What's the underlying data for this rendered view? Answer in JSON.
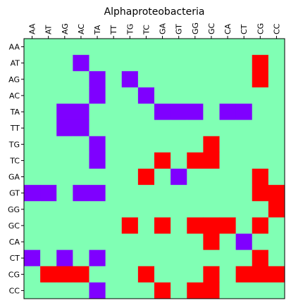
{
  "chart_data": {
    "type": "heatmap",
    "title": "Alphaproteobacteria",
    "x_categories": [
      "AA",
      "AT",
      "AG",
      "AC",
      "TA",
      "TT",
      "TG",
      "TC",
      "GA",
      "GT",
      "GG",
      "GC",
      "CA",
      "CT",
      "CG",
      "CC"
    ],
    "y_categories": [
      "AA",
      "AT",
      "AG",
      "AC",
      "TA",
      "TT",
      "TG",
      "TC",
      "GA",
      "GT",
      "GG",
      "GC",
      "CA",
      "CT",
      "CG",
      "CC"
    ],
    "x_tick_position": "top",
    "grid": false,
    "color_scale": {
      "-1": "#7f00ff",
      "0": "#80ffb4",
      "1": "#ff0000"
    },
    "values": [
      [
        0,
        0,
        0,
        0,
        0,
        0,
        0,
        0,
        0,
        0,
        0,
        0,
        0,
        0,
        0,
        0
      ],
      [
        0,
        0,
        0,
        -1,
        0,
        0,
        0,
        0,
        0,
        0,
        0,
        0,
        0,
        0,
        1,
        0
      ],
      [
        0,
        0,
        0,
        0,
        -1,
        0,
        -1,
        0,
        0,
        0,
        0,
        0,
        0,
        0,
        1,
        0
      ],
      [
        0,
        0,
        0,
        0,
        -1,
        0,
        0,
        -1,
        0,
        0,
        0,
        0,
        0,
        0,
        0,
        0
      ],
      [
        0,
        0,
        -1,
        -1,
        0,
        0,
        0,
        0,
        -1,
        -1,
        -1,
        0,
        -1,
        -1,
        0,
        0
      ],
      [
        0,
        0,
        -1,
        -1,
        0,
        0,
        0,
        0,
        0,
        0,
        0,
        0,
        0,
        0,
        0,
        0
      ],
      [
        0,
        0,
        0,
        0,
        -1,
        0,
        0,
        0,
        0,
        0,
        0,
        1,
        0,
        0,
        0,
        0
      ],
      [
        0,
        0,
        0,
        0,
        -1,
        0,
        0,
        0,
        1,
        0,
        1,
        1,
        0,
        0,
        0,
        0
      ],
      [
        0,
        0,
        0,
        0,
        0,
        0,
        0,
        1,
        0,
        -1,
        0,
        0,
        0,
        0,
        1,
        0
      ],
      [
        -1,
        -1,
        0,
        -1,
        -1,
        0,
        0,
        0,
        0,
        0,
        0,
        0,
        0,
        0,
        1,
        1
      ],
      [
        0,
        0,
        0,
        0,
        0,
        0,
        0,
        0,
        0,
        0,
        0,
        0,
        0,
        0,
        0,
        1
      ],
      [
        0,
        0,
        0,
        0,
        0,
        0,
        1,
        0,
        1,
        0,
        1,
        1,
        1,
        0,
        1,
        0
      ],
      [
        0,
        0,
        0,
        0,
        0,
        0,
        0,
        0,
        0,
        0,
        0,
        1,
        0,
        -1,
        0,
        0
      ],
      [
        -1,
        0,
        -1,
        0,
        -1,
        0,
        0,
        0,
        0,
        0,
        0,
        0,
        0,
        0,
        1,
        0
      ],
      [
        0,
        1,
        1,
        1,
        0,
        0,
        0,
        1,
        0,
        0,
        0,
        1,
        0,
        1,
        1,
        1
      ],
      [
        0,
        0,
        0,
        0,
        -1,
        0,
        0,
        0,
        1,
        0,
        1,
        1,
        0,
        0,
        0,
        0
      ]
    ]
  }
}
